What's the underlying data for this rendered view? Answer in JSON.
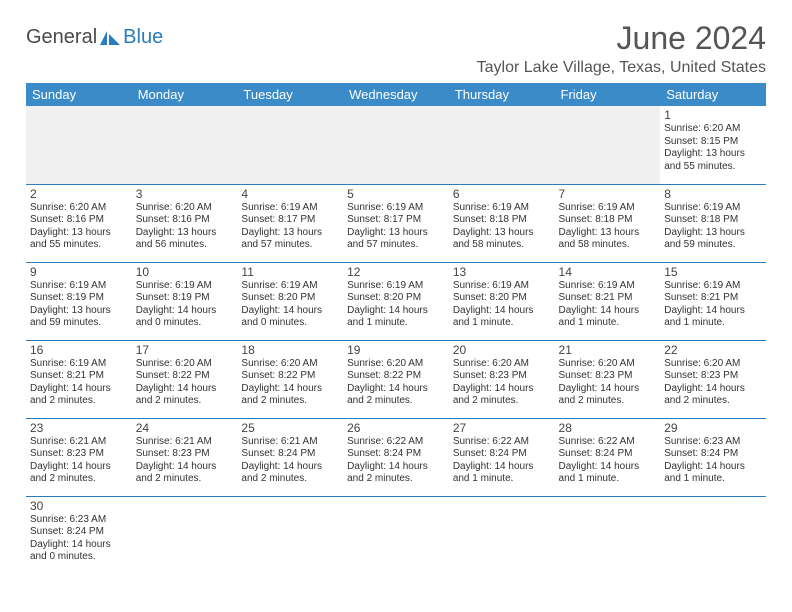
{
  "logo": {
    "general": "General",
    "blue": "Blue"
  },
  "title": "June 2024",
  "location": "Taylor Lake Village, Texas, United States",
  "days_of_week": [
    "Sunday",
    "Monday",
    "Tuesday",
    "Wednesday",
    "Thursday",
    "Friday",
    "Saturday"
  ],
  "colors": {
    "header_bg": "#3b8bc9",
    "header_text": "#ffffff",
    "accent": "#2b7bbf",
    "text": "#333333",
    "title_text": "#555555",
    "empty_bg": "#f0f0f0"
  },
  "typography": {
    "title_fontsize": 32,
    "location_fontsize": 16,
    "dayheader_fontsize": 13,
    "daynum_fontsize": 12,
    "body_fontsize": 10
  },
  "weeks": [
    [
      null,
      null,
      null,
      null,
      null,
      null,
      {
        "day": "1",
        "sunrise": "Sunrise: 6:20 AM",
        "sunset": "Sunset: 8:15 PM",
        "daylight1": "Daylight: 13 hours",
        "daylight2": "and 55 minutes."
      }
    ],
    [
      {
        "day": "2",
        "sunrise": "Sunrise: 6:20 AM",
        "sunset": "Sunset: 8:16 PM",
        "daylight1": "Daylight: 13 hours",
        "daylight2": "and 55 minutes."
      },
      {
        "day": "3",
        "sunrise": "Sunrise: 6:20 AM",
        "sunset": "Sunset: 8:16 PM",
        "daylight1": "Daylight: 13 hours",
        "daylight2": "and 56 minutes."
      },
      {
        "day": "4",
        "sunrise": "Sunrise: 6:19 AM",
        "sunset": "Sunset: 8:17 PM",
        "daylight1": "Daylight: 13 hours",
        "daylight2": "and 57 minutes."
      },
      {
        "day": "5",
        "sunrise": "Sunrise: 6:19 AM",
        "sunset": "Sunset: 8:17 PM",
        "daylight1": "Daylight: 13 hours",
        "daylight2": "and 57 minutes."
      },
      {
        "day": "6",
        "sunrise": "Sunrise: 6:19 AM",
        "sunset": "Sunset: 8:18 PM",
        "daylight1": "Daylight: 13 hours",
        "daylight2": "and 58 minutes."
      },
      {
        "day": "7",
        "sunrise": "Sunrise: 6:19 AM",
        "sunset": "Sunset: 8:18 PM",
        "daylight1": "Daylight: 13 hours",
        "daylight2": "and 58 minutes."
      },
      {
        "day": "8",
        "sunrise": "Sunrise: 6:19 AM",
        "sunset": "Sunset: 8:18 PM",
        "daylight1": "Daylight: 13 hours",
        "daylight2": "and 59 minutes."
      }
    ],
    [
      {
        "day": "9",
        "sunrise": "Sunrise: 6:19 AM",
        "sunset": "Sunset: 8:19 PM",
        "daylight1": "Daylight: 13 hours",
        "daylight2": "and 59 minutes."
      },
      {
        "day": "10",
        "sunrise": "Sunrise: 6:19 AM",
        "sunset": "Sunset: 8:19 PM",
        "daylight1": "Daylight: 14 hours",
        "daylight2": "and 0 minutes."
      },
      {
        "day": "11",
        "sunrise": "Sunrise: 6:19 AM",
        "sunset": "Sunset: 8:20 PM",
        "daylight1": "Daylight: 14 hours",
        "daylight2": "and 0 minutes."
      },
      {
        "day": "12",
        "sunrise": "Sunrise: 6:19 AM",
        "sunset": "Sunset: 8:20 PM",
        "daylight1": "Daylight: 14 hours",
        "daylight2": "and 1 minute."
      },
      {
        "day": "13",
        "sunrise": "Sunrise: 6:19 AM",
        "sunset": "Sunset: 8:20 PM",
        "daylight1": "Daylight: 14 hours",
        "daylight2": "and 1 minute."
      },
      {
        "day": "14",
        "sunrise": "Sunrise: 6:19 AM",
        "sunset": "Sunset: 8:21 PM",
        "daylight1": "Daylight: 14 hours",
        "daylight2": "and 1 minute."
      },
      {
        "day": "15",
        "sunrise": "Sunrise: 6:19 AM",
        "sunset": "Sunset: 8:21 PM",
        "daylight1": "Daylight: 14 hours",
        "daylight2": "and 1 minute."
      }
    ],
    [
      {
        "day": "16",
        "sunrise": "Sunrise: 6:19 AM",
        "sunset": "Sunset: 8:21 PM",
        "daylight1": "Daylight: 14 hours",
        "daylight2": "and 2 minutes."
      },
      {
        "day": "17",
        "sunrise": "Sunrise: 6:20 AM",
        "sunset": "Sunset: 8:22 PM",
        "daylight1": "Daylight: 14 hours",
        "daylight2": "and 2 minutes."
      },
      {
        "day": "18",
        "sunrise": "Sunrise: 6:20 AM",
        "sunset": "Sunset: 8:22 PM",
        "daylight1": "Daylight: 14 hours",
        "daylight2": "and 2 minutes."
      },
      {
        "day": "19",
        "sunrise": "Sunrise: 6:20 AM",
        "sunset": "Sunset: 8:22 PM",
        "daylight1": "Daylight: 14 hours",
        "daylight2": "and 2 minutes."
      },
      {
        "day": "20",
        "sunrise": "Sunrise: 6:20 AM",
        "sunset": "Sunset: 8:23 PM",
        "daylight1": "Daylight: 14 hours",
        "daylight2": "and 2 minutes."
      },
      {
        "day": "21",
        "sunrise": "Sunrise: 6:20 AM",
        "sunset": "Sunset: 8:23 PM",
        "daylight1": "Daylight: 14 hours",
        "daylight2": "and 2 minutes."
      },
      {
        "day": "22",
        "sunrise": "Sunrise: 6:20 AM",
        "sunset": "Sunset: 8:23 PM",
        "daylight1": "Daylight: 14 hours",
        "daylight2": "and 2 minutes."
      }
    ],
    [
      {
        "day": "23",
        "sunrise": "Sunrise: 6:21 AM",
        "sunset": "Sunset: 8:23 PM",
        "daylight1": "Daylight: 14 hours",
        "daylight2": "and 2 minutes."
      },
      {
        "day": "24",
        "sunrise": "Sunrise: 6:21 AM",
        "sunset": "Sunset: 8:23 PM",
        "daylight1": "Daylight: 14 hours",
        "daylight2": "and 2 minutes."
      },
      {
        "day": "25",
        "sunrise": "Sunrise: 6:21 AM",
        "sunset": "Sunset: 8:24 PM",
        "daylight1": "Daylight: 14 hours",
        "daylight2": "and 2 minutes."
      },
      {
        "day": "26",
        "sunrise": "Sunrise: 6:22 AM",
        "sunset": "Sunset: 8:24 PM",
        "daylight1": "Daylight: 14 hours",
        "daylight2": "and 2 minutes."
      },
      {
        "day": "27",
        "sunrise": "Sunrise: 6:22 AM",
        "sunset": "Sunset: 8:24 PM",
        "daylight1": "Daylight: 14 hours",
        "daylight2": "and 1 minute."
      },
      {
        "day": "28",
        "sunrise": "Sunrise: 6:22 AM",
        "sunset": "Sunset: 8:24 PM",
        "daylight1": "Daylight: 14 hours",
        "daylight2": "and 1 minute."
      },
      {
        "day": "29",
        "sunrise": "Sunrise: 6:23 AM",
        "sunset": "Sunset: 8:24 PM",
        "daylight1": "Daylight: 14 hours",
        "daylight2": "and 1 minute."
      }
    ],
    [
      {
        "day": "30",
        "sunrise": "Sunrise: 6:23 AM",
        "sunset": "Sunset: 8:24 PM",
        "daylight1": "Daylight: 14 hours",
        "daylight2": "and 0 minutes."
      },
      null,
      null,
      null,
      null,
      null,
      null
    ]
  ]
}
